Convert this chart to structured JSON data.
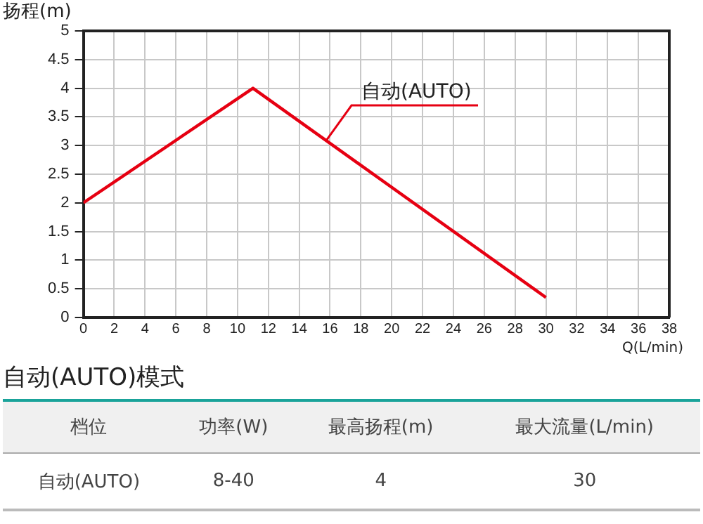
{
  "chart_data": {
    "type": "line",
    "ylabel": "扬程(m)",
    "xlabel": "Q(L/min)",
    "xlim": [
      0,
      38
    ],
    "xticks": [
      0,
      2,
      4,
      6,
      8,
      10,
      12,
      14,
      16,
      18,
      20,
      22,
      24,
      26,
      28,
      30,
      32,
      34,
      36,
      38
    ],
    "ylim": [
      0,
      5
    ],
    "yticks": [
      0,
      0.5,
      1,
      1.5,
      2,
      2.5,
      3,
      3.5,
      4,
      4.5,
      5
    ],
    "series": [
      {
        "name": "自动(AUTO)",
        "color": "#e60012",
        "x": [
          0,
          11,
          30
        ],
        "values": [
          2,
          4,
          0.35
        ]
      }
    ],
    "grid": true,
    "legend": false,
    "marker": "none",
    "line_style": "solid",
    "annotations": [
      "自动(AUTO)模式",
      "档位",
      "功率(W)",
      "最高扬程(m)",
      "最大流量(L/min)",
      "自动(AUTO)",
      "8-40",
      "4",
      "30"
    ]
  }
}
